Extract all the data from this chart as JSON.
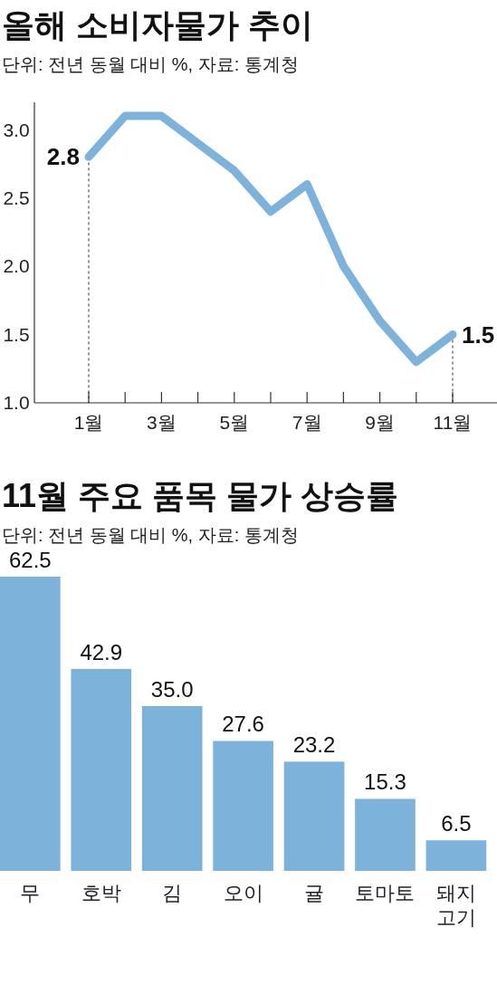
{
  "chart_data": [
    {
      "type": "line",
      "title": "올해 소비자물가 추이",
      "subtitle": "단위: 전년 동월 대비 %, 자료: 통계청",
      "categories": [
        "1월",
        null,
        "3월",
        null,
        "5월",
        null,
        "7월",
        null,
        "9월",
        null,
        "11월"
      ],
      "series": [
        {
          "color": "#7db3da",
          "values": [
            2.8,
            3.1,
            3.1,
            2.9,
            2.7,
            2.4,
            2.6,
            2.0,
            1.6,
            1.3,
            1.5
          ],
          "value_labels": [
            "2.8",
            null,
            null,
            null,
            null,
            null,
            null,
            null,
            null,
            null,
            "1.5"
          ]
        }
      ],
      "ylim": [
        1.0,
        3.2
      ],
      "yticks": [
        {
          "value": 1.0,
          "label": "1.0"
        },
        {
          "value": 1.5,
          "label": "1.5"
        },
        {
          "value": 2.0,
          "label": "2.0"
        },
        {
          "value": 2.5,
          "label": "2.5"
        },
        {
          "value": 3.0,
          "label": "3.0"
        }
      ],
      "ref_lines": [
        {
          "axis": "x",
          "value": "1월",
          "line_style": "dashed",
          "color": "#333333"
        },
        {
          "axis": "x",
          "value": "11월",
          "line_style": "dashed",
          "color": "#333333"
        }
      ]
    },
    {
      "type": "bar",
      "title": "11월 주요 품목 물가 상승률",
      "subtitle": "단위: 전년 동월 대비 %, 자료: 통계청",
      "categories": [
        "무",
        "호박",
        "김",
        "오이",
        "귤",
        "토마토",
        "돼지 고기"
      ],
      "values": [
        62.5,
        42.9,
        35.0,
        27.6,
        23.2,
        15.3,
        6.5
      ],
      "value_labels": [
        "62.5",
        "42.9",
        "35.0",
        "27.6",
        "23.2",
        "15.3",
        "6.5"
      ],
      "color": "#7db3da"
    }
  ]
}
